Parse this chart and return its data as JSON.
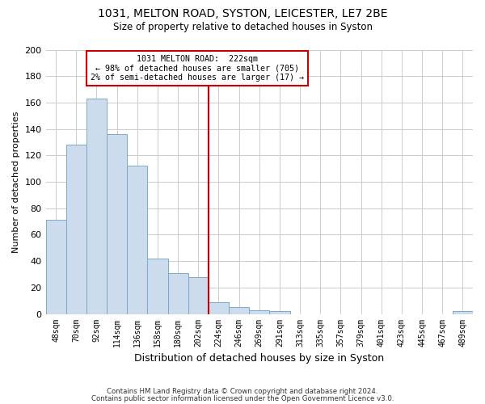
{
  "title1": "1031, MELTON ROAD, SYSTON, LEICESTER, LE7 2BE",
  "title2": "Size of property relative to detached houses in Syston",
  "xlabel": "Distribution of detached houses by size in Syston",
  "ylabel": "Number of detached properties",
  "bin_labels": [
    "48sqm",
    "70sqm",
    "92sqm",
    "114sqm",
    "136sqm",
    "158sqm",
    "180sqm",
    "202sqm",
    "224sqm",
    "246sqm",
    "269sqm",
    "291sqm",
    "313sqm",
    "335sqm",
    "357sqm",
    "379sqm",
    "401sqm",
    "423sqm",
    "445sqm",
    "467sqm",
    "489sqm"
  ],
  "bar_heights": [
    71,
    128,
    163,
    136,
    112,
    42,
    31,
    28,
    9,
    5,
    3,
    2,
    0,
    0,
    0,
    0,
    0,
    0,
    0,
    0,
    2
  ],
  "bar_color": "#ccdcec",
  "bar_edgecolor": "#7aaac8",
  "vline_color": "#cc0000",
  "vline_x_index": 7.5,
  "annotation_title": "1031 MELTON ROAD:  222sqm",
  "annotation_line1": "← 98% of detached houses are smaller (705)",
  "annotation_line2": "2% of semi-detached houses are larger (17) →",
  "annotation_box_edgecolor": "#cc0000",
  "ylim": [
    0,
    200
  ],
  "yticks": [
    0,
    20,
    40,
    60,
    80,
    100,
    120,
    140,
    160,
    180,
    200
  ],
  "footer1": "Contains HM Land Registry data © Crown copyright and database right 2024.",
  "footer2": "Contains public sector information licensed under the Open Government Licence v3.0.",
  "bg_color": "#ffffff",
  "plot_bg_color": "#ffffff",
  "grid_color": "#cccccc"
}
